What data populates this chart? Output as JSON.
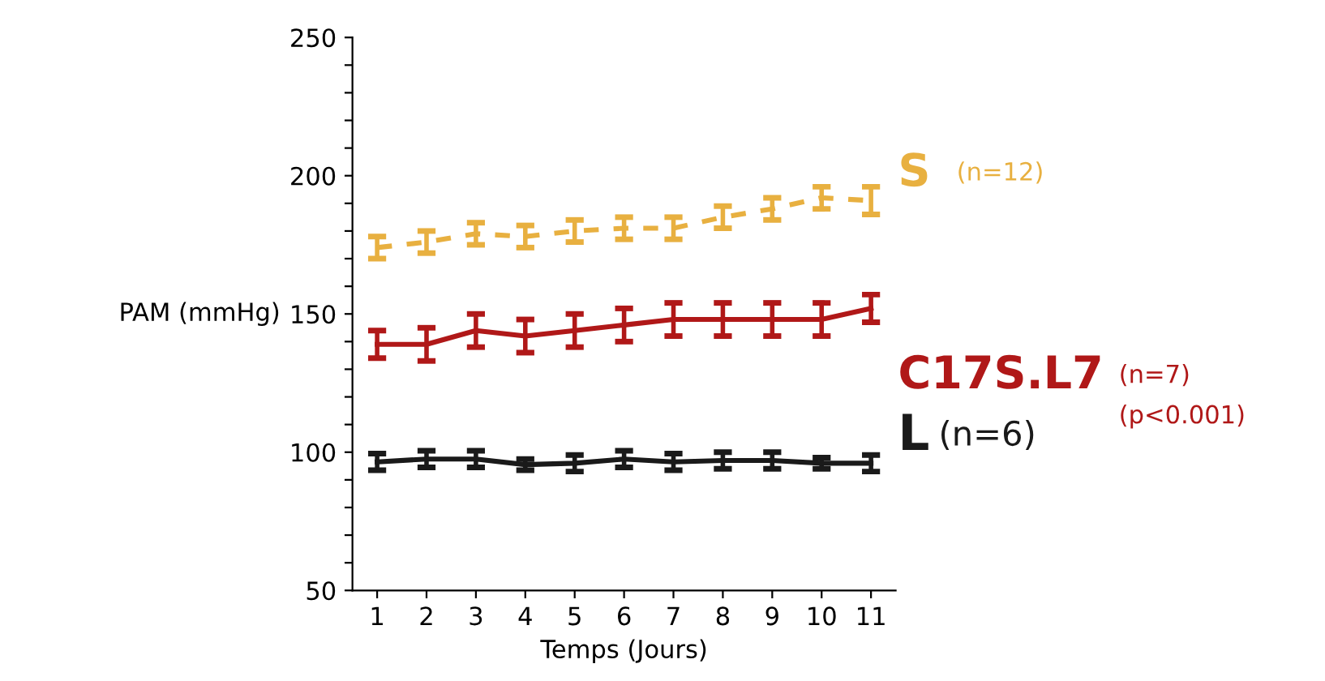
{
  "chart_data": {
    "type": "line",
    "xlabel": "Temps (Jours)",
    "ylabel": "PAM (mmHg)",
    "x": [
      1,
      2,
      3,
      4,
      5,
      6,
      7,
      8,
      9,
      10,
      11
    ],
    "xlim": [
      0.5,
      11.5
    ],
    "xticks": [
      1,
      2,
      3,
      4,
      5,
      6,
      7,
      8,
      9,
      10,
      11
    ],
    "ylim": [
      50,
      250
    ],
    "yticks": [
      50,
      {
        "value": 60,
        "label": null
      },
      {
        "value": 70,
        "label": null
      },
      {
        "value": 80,
        "label": null
      },
      {
        "value": 90,
        "label": null
      },
      100,
      {
        "value": 110,
        "label": null
      },
      {
        "value": 120,
        "label": null
      },
      {
        "value": 130,
        "label": null
      },
      {
        "value": 140,
        "label": null
      },
      150,
      {
        "value": 160,
        "label": null
      },
      {
        "value": 170,
        "label": null
      },
      {
        "value": 180,
        "label": null
      },
      {
        "value": 190,
        "label": null
      },
      200,
      {
        "value": 210,
        "label": null
      },
      {
        "value": 220,
        "label": null
      },
      {
        "value": 230,
        "label": null
      },
      {
        "value": 240,
        "label": null
      },
      250
    ],
    "grid": false,
    "legend": false,
    "marker": "none",
    "series": [
      {
        "name": "S",
        "color": "#e8b040",
        "line_style": "dashed",
        "values": [
          174,
          176,
          179,
          178,
          180,
          181,
          181,
          185,
          188,
          192,
          191
        ],
        "errors": [
          4,
          4,
          4,
          4,
          4,
          4,
          4,
          4,
          4,
          4,
          5
        ]
      },
      {
        "name": "C17S.L7",
        "color": "#b01818",
        "line_style": "solid",
        "values": [
          139,
          139,
          144,
          142,
          144,
          146,
          148,
          148,
          148,
          148,
          152
        ],
        "errors": [
          5,
          6,
          6,
          6,
          6,
          6,
          6,
          6,
          6,
          6,
          5
        ]
      },
      {
        "name": "L",
        "color": "#1a1a1a",
        "line_style": "solid",
        "values": [
          96.5,
          97.5,
          97.5,
          95.5,
          96,
          97.5,
          96.5,
          97,
          97,
          96,
          96
        ],
        "errors": [
          3,
          3,
          3,
          2,
          3,
          3,
          3,
          3,
          3,
          2,
          3
        ]
      }
    ],
    "annotations": [
      "(n=12)",
      "(n=7)",
      "(p<0.001)",
      "(n=6)"
    ]
  }
}
